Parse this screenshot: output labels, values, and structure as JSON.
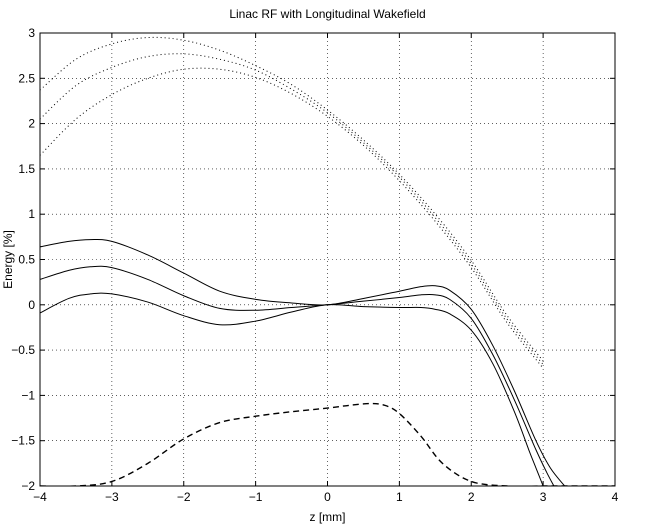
{
  "chart_data": {
    "type": "line",
    "title": "Linac RF with Longitudinal Wakefield",
    "xlabel": "z [mm]",
    "ylabel": "Energy [%]",
    "xlim": [
      -4,
      4
    ],
    "ylim": [
      -2,
      3
    ],
    "grid": true,
    "legend": "none",
    "x_ticks": [
      -4,
      -3,
      -2,
      -1,
      0,
      1,
      2,
      3,
      4
    ],
    "y_ticks": [
      -2,
      -1.5,
      -1,
      -0.5,
      0,
      0.5,
      1,
      1.5,
      2,
      2.5,
      3
    ],
    "x_tick_labels": [
      "−4",
      "−3",
      "−2",
      "−1",
      "0",
      "1",
      "2",
      "3",
      "4"
    ],
    "y_tick_labels": [
      "−2",
      "−1.5",
      "−1",
      "−0.5",
      "0",
      "0.5",
      "1",
      "1.5",
      "2",
      "2.5",
      "3"
    ],
    "series": [
      {
        "style": "dotted",
        "x": [
          -4,
          -3.5,
          -3,
          -2.5,
          -2,
          -1.5,
          -1,
          -0.5,
          0,
          0.5,
          1,
          1.5,
          2,
          2.5,
          3
        ],
        "y": [
          2.37,
          2.71,
          2.88,
          2.95,
          2.92,
          2.81,
          2.64,
          2.43,
          2.15,
          1.82,
          1.44,
          1.0,
          0.49,
          -0.12,
          -0.62
        ]
      },
      {
        "style": "dotted",
        "x": [
          -4,
          -3.5,
          -3,
          -2.5,
          -2,
          -1.5,
          -1,
          -0.5,
          0,
          0.5,
          1,
          1.5,
          2,
          2.5,
          3
        ],
        "y": [
          2.05,
          2.42,
          2.62,
          2.74,
          2.77,
          2.71,
          2.59,
          2.38,
          2.12,
          1.79,
          1.41,
          0.96,
          0.45,
          -0.16,
          -0.66
        ]
      },
      {
        "style": "dotted",
        "x": [
          -4,
          -3.5,
          -3,
          -2.5,
          -2,
          -1.5,
          -1,
          -0.5,
          0,
          0.5,
          1,
          1.5,
          2,
          2.5,
          3
        ],
        "y": [
          1.65,
          2.05,
          2.32,
          2.5,
          2.6,
          2.6,
          2.51,
          2.33,
          2.08,
          1.76,
          1.37,
          0.92,
          0.41,
          -0.2,
          -0.7
        ]
      },
      {
        "style": "solid",
        "x": [
          -4,
          -3.6,
          -3.3,
          -3,
          -2.5,
          -2,
          -1.5,
          -1,
          -0.5,
          0,
          0.5,
          1,
          1.3,
          1.5,
          1.7,
          2,
          2.3,
          2.6,
          2.9,
          3.1,
          3.3
        ],
        "y": [
          0.64,
          0.7,
          0.72,
          0.7,
          0.55,
          0.35,
          0.15,
          0.06,
          0.02,
          0.0,
          0.07,
          0.15,
          0.2,
          0.21,
          0.16,
          -0.05,
          -0.45,
          -0.95,
          -1.5,
          -1.8,
          -2.0
        ]
      },
      {
        "style": "solid",
        "x": [
          -4,
          -3.6,
          -3.3,
          -3,
          -2.5,
          -2,
          -1.5,
          -1,
          -0.5,
          0,
          0.5,
          1,
          1.3,
          1.5,
          1.7,
          2,
          2.3,
          2.6,
          2.9,
          3.05,
          3.15
        ],
        "y": [
          0.28,
          0.38,
          0.42,
          0.41,
          0.28,
          0.1,
          -0.04,
          -0.06,
          -0.03,
          0.0,
          0.04,
          0.08,
          0.11,
          0.11,
          0.06,
          -0.15,
          -0.55,
          -1.05,
          -1.6,
          -1.85,
          -2.0
        ]
      },
      {
        "style": "solid",
        "x": [
          -4,
          -3.6,
          -3.3,
          -3,
          -2.5,
          -2,
          -1.5,
          -1,
          -0.5,
          0,
          0.5,
          1,
          1.3,
          1.5,
          1.7,
          2,
          2.3,
          2.6,
          2.8,
          2.9,
          3.0
        ],
        "y": [
          -0.09,
          0.07,
          0.12,
          0.12,
          0.03,
          -0.12,
          -0.22,
          -0.18,
          -0.08,
          0.0,
          -0.02,
          -0.03,
          -0.03,
          -0.05,
          -0.1,
          -0.28,
          -0.65,
          -1.18,
          -1.6,
          -1.8,
          -2.0
        ]
      },
      {
        "style": "dashed",
        "x": [
          -4,
          -3.5,
          -3,
          -2.5,
          -2,
          -1.5,
          -1,
          -0.5,
          0,
          0.3,
          0.6,
          0.8,
          1,
          1.3,
          1.6,
          2,
          2.5,
          3,
          3.5,
          4
        ],
        "y": [
          -2.0,
          -2.0,
          -1.95,
          -1.75,
          -1.48,
          -1.3,
          -1.23,
          -1.18,
          -1.14,
          -1.11,
          -1.09,
          -1.11,
          -1.2,
          -1.45,
          -1.75,
          -1.95,
          -2.0,
          -2.0,
          -2.0,
          -2.0
        ]
      }
    ]
  }
}
